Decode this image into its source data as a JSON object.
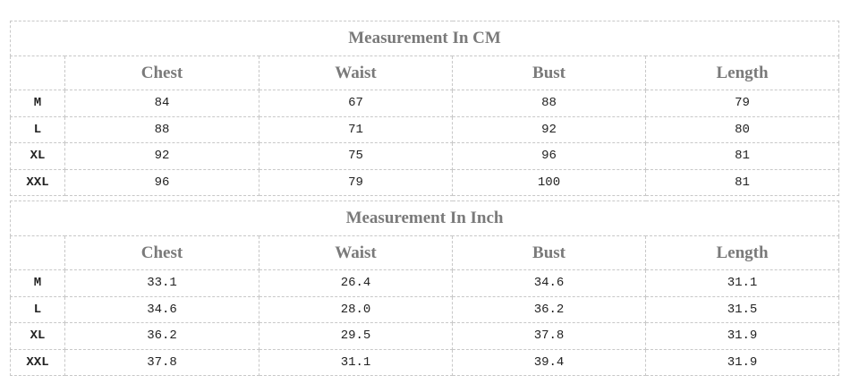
{
  "tables": [
    {
      "title": "Measurement In CM",
      "headers": [
        "",
        "Chest",
        "Waist",
        "Bust",
        "Length"
      ],
      "rows": [
        [
          "M",
          "84",
          "67",
          "88",
          "79"
        ],
        [
          "L",
          "88",
          "71",
          "92",
          "80"
        ],
        [
          "XL",
          "92",
          "75",
          "96",
          "81"
        ],
        [
          "XXL",
          "96",
          "79",
          "100",
          "81"
        ]
      ]
    },
    {
      "title": "Measurement In Inch",
      "headers": [
        "",
        "Chest",
        "Waist",
        "Bust",
        "Length"
      ],
      "rows": [
        [
          "M",
          "33.1",
          "26.4",
          "34.6",
          "31.1"
        ],
        [
          "L",
          "34.6",
          "28.0",
          "36.2",
          "31.5"
        ],
        [
          "XL",
          "36.2",
          "29.5",
          "37.8",
          "31.9"
        ],
        [
          "XXL",
          "37.8",
          "31.1",
          "39.4",
          "31.9"
        ]
      ]
    }
  ]
}
